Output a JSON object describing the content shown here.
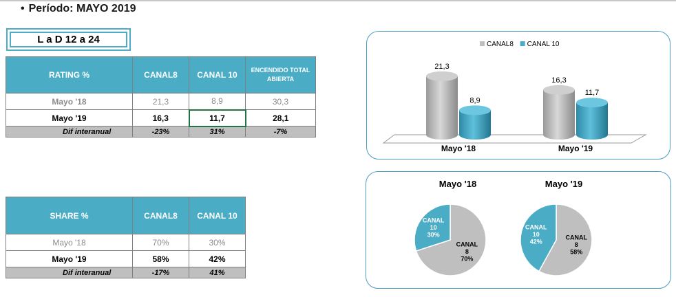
{
  "header": {
    "bullet": "•",
    "period": "Período: MAYO 2019"
  },
  "badge": {
    "label": "L a D 12 a 24"
  },
  "rating_table": {
    "headers": [
      "RATING %",
      "CANAL8",
      "CANAL 10",
      "ENCENDIDO TOTAL ABIERTA"
    ],
    "rows": [
      {
        "label": "Mayo '18",
        "values": [
          "21,3",
          "8,9",
          "30,3"
        ]
      },
      {
        "label": "Mayo '19",
        "values": [
          "16,3",
          "11,7",
          "28,1"
        ]
      }
    ],
    "dif": {
      "label": "Dif interanual",
      "values": [
        "-23%",
        "31%",
        "-7%"
      ]
    }
  },
  "share_table": {
    "headers": [
      "SHARE %",
      "CANAL8",
      "CANAL 10"
    ],
    "rows": [
      {
        "label": "Mayo '18",
        "values": [
          "70%",
          "30%"
        ]
      },
      {
        "label": "Mayo '19",
        "values": [
          "58%",
          "42%"
        ]
      }
    ],
    "dif": {
      "label": "Dif interanual",
      "values": [
        "-17%",
        "41%"
      ]
    }
  },
  "colors": {
    "canal8": "#bfbfbf",
    "canal10": "#4bacc6",
    "border": "#4d9cc4"
  },
  "chart_data": [
    {
      "type": "bar",
      "categories": [
        "Mayo '18",
        "Mayo '19"
      ],
      "series": [
        {
          "name": "CANAL8",
          "values": [
            21.3,
            16.3
          ],
          "labels": [
            "21,3",
            "16,3"
          ]
        },
        {
          "name": "CANAL 10",
          "values": [
            8.9,
            11.7
          ],
          "labels": [
            "8,9",
            "11,7"
          ]
        }
      ],
      "legend": "top",
      "ylim": [
        0,
        25
      ]
    },
    {
      "type": "pie",
      "title": "Mayo '18",
      "slices": [
        {
          "label_lines": [
            "CANAL",
            "8",
            "70%"
          ],
          "value": 70
        },
        {
          "label_lines": [
            "CANAL",
            "10",
            "30%"
          ],
          "value": 30
        }
      ]
    },
    {
      "type": "pie",
      "title": "Mayo '19",
      "slices": [
        {
          "label_lines": [
            "CANAL",
            "8",
            "58%"
          ],
          "value": 58
        },
        {
          "label_lines": [
            "CANAL",
            "10",
            "42%"
          ],
          "value": 42
        }
      ]
    }
  ]
}
